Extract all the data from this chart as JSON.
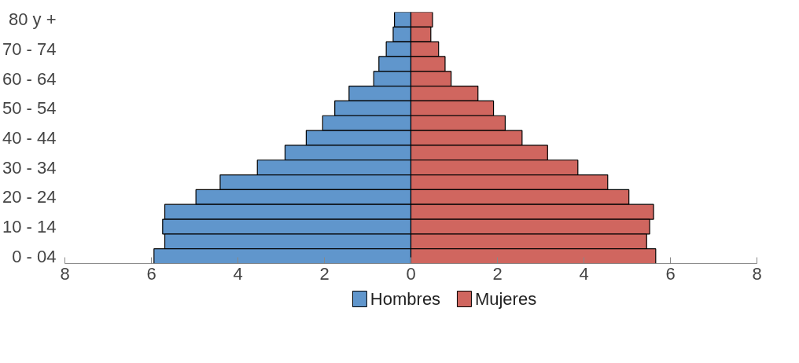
{
  "chart_data": {
    "type": "bar",
    "orientation": "horizontal",
    "stacked": true,
    "categories": [
      "80 y +",
      null,
      "70 - 74",
      null,
      "60 - 64",
      null,
      "50 - 54",
      null,
      "40 - 44",
      null,
      "30 - 34",
      null,
      "20 - 24",
      null,
      "10 - 14",
      null,
      "0 - 04"
    ],
    "series": [
      {
        "name": "Hombres",
        "color": "#6096cc",
        "values": [
          -0.38,
          -0.41,
          -0.57,
          -0.74,
          -0.86,
          -1.43,
          -1.76,
          -2.04,
          -2.42,
          -2.91,
          -3.55,
          -4.41,
          -4.97,
          -5.69,
          -5.74,
          -5.69,
          -5.94
        ]
      },
      {
        "name": "Mujeres",
        "color": "#d0665f",
        "values": [
          0.5,
          0.46,
          0.64,
          0.79,
          0.93,
          1.55,
          1.91,
          2.18,
          2.57,
          3.16,
          3.86,
          4.55,
          5.04,
          5.61,
          5.52,
          5.45,
          5.66
        ]
      }
    ],
    "xlim": [
      -8,
      8
    ],
    "xticks": [
      {
        "value": -8,
        "label": "8"
      },
      {
        "value": -6,
        "label": "6"
      },
      {
        "value": -4,
        "label": "4"
      },
      {
        "value": -2,
        "label": "2"
      },
      0,
      2,
      4,
      6,
      8
    ],
    "grid": false,
    "legend": "bottom"
  }
}
